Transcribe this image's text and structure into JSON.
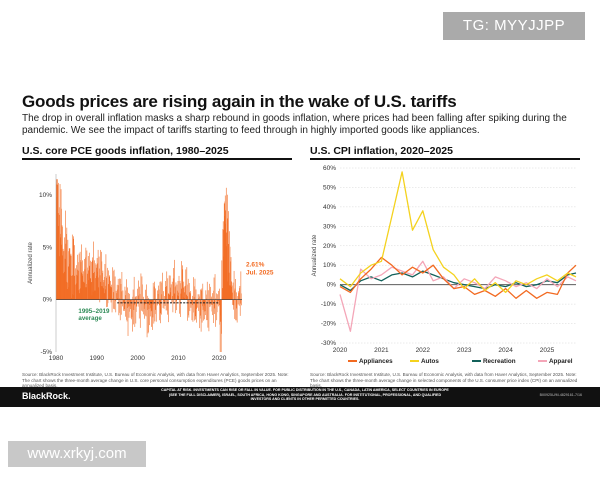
{
  "watermark_top": "TG: MYYJJPP",
  "watermark_bottom": "www.xrkyj.com",
  "title": "Goods prices are rising again in the wake of U.S. tariffs",
  "subtitle": "The drop in overall inflation masks a sharp rebound in goods inflation, where prices had been falling after spiking during the pandemic. We see the impact of tariffs starting to feed through in highly imported goods like appliances.",
  "footer": {
    "brand": "BlackRock.",
    "disclaimer": "CAPITAL AT RISK. INVESTMENTS CAN RISE OR FALL IN VALUE. FOR PUBLIC DISTRIBUTION IN THE U.S., CANADA, LATIN AMERICA, SELECT COUNTRIES IN EUROPE (SEE THE FULL DISCLAIMER), ISRAEL, SOUTH AFRICA, HONG KONG, SINGAPORE AND AUSTRALIA. FOR INSTITUTIONAL, PROFESSIONAL, AND QUALIFIED INVESTORS AND CLIENTS IN OTHER PERMITTED COUNTRIES.",
    "code": "BII0925U/M-4829161-7/16"
  },
  "colors": {
    "orange": "#f26a21",
    "dark": "#2e2e2e",
    "green": "#2e8b57",
    "axis": "#444444",
    "yellow": "#f4d21e",
    "teal": "#12615a",
    "pink": "#f4a6b8",
    "grid": "#cccccc"
  },
  "chart_data": [
    {
      "type": "bar",
      "title": "U.S. core PCE goods inflation, 1980–2025",
      "ylabel": "Annualized rate",
      "xlim": [
        1980,
        2025.6
      ],
      "ylim": [
        -5,
        12
      ],
      "yticks": [
        -5,
        0,
        5,
        10
      ],
      "ytick_labels": [
        "-5%",
        "0%",
        "5%",
        "10%"
      ],
      "xticks": [
        1980,
        1990,
        2000,
        2010,
        2020
      ],
      "average": {
        "value": -0.3,
        "label_1": "1995–2019",
        "label_2": "average"
      },
      "latest": {
        "value": 2.61,
        "label_1": "2.61%",
        "label_2": "Jul. 2025"
      },
      "anchors": [
        [
          1980,
          11.0
        ],
        [
          1980.5,
          9.0
        ],
        [
          1981,
          8.0
        ],
        [
          1981.5,
          6.0
        ],
        [
          1982,
          4.0
        ],
        [
          1982.5,
          5.0
        ],
        [
          1983,
          3.0
        ],
        [
          1983.5,
          4.0
        ],
        [
          1984,
          3.0
        ],
        [
          1985,
          2.5
        ],
        [
          1986,
          3.0
        ],
        [
          1987,
          2.5
        ],
        [
          1988,
          3.0
        ],
        [
          1989,
          2.5
        ],
        [
          1990,
          3.0
        ],
        [
          1991,
          2.5
        ],
        [
          1992,
          1.8
        ],
        [
          1993,
          1.2
        ],
        [
          1994,
          0.8
        ],
        [
          1995,
          0.5
        ],
        [
          1996,
          0.3
        ],
        [
          1997,
          -0.3
        ],
        [
          1998,
          -1.0
        ],
        [
          1999,
          -0.8
        ],
        [
          2000,
          0.0
        ],
        [
          2001,
          0.2
        ],
        [
          2002,
          -1.0
        ],
        [
          2003,
          -1.5
        ],
        [
          2004,
          -0.5
        ],
        [
          2005,
          0.0
        ],
        [
          2006,
          0.2
        ],
        [
          2007,
          0.3
        ],
        [
          2008,
          0.8
        ],
        [
          2009,
          1.0
        ],
        [
          2010,
          0.5
        ],
        [
          2011,
          1.5
        ],
        [
          2012,
          0.8
        ],
        [
          2013,
          -0.5
        ],
        [
          2014,
          -0.2
        ],
        [
          2015,
          -0.6
        ],
        [
          2016,
          -0.8
        ],
        [
          2017,
          -0.6
        ],
        [
          2018,
          -0.2
        ],
        [
          2019,
          -0.2
        ],
        [
          2020,
          -0.5
        ],
        [
          2020.4,
          -4.2
        ],
        [
          2020.8,
          3.5
        ],
        [
          2021.3,
          10.5
        ],
        [
          2021.7,
          7.0
        ],
        [
          2022.2,
          6.0
        ],
        [
          2022.7,
          2.5
        ],
        [
          2023.2,
          1.0
        ],
        [
          2023.7,
          0.0
        ],
        [
          2024.2,
          -0.5
        ],
        [
          2024.7,
          -0.2
        ],
        [
          2025.2,
          0.8
        ],
        [
          2025.6,
          2.61
        ]
      ],
      "note": "Source: BlackRock Investment Institute, U.S. Bureau of Economic Analysis, with data from Haver Analytics, September 2025. Note: The chart shows the three-month average change in U.S. core personal consumption expenditures (PCE) goods prices on an annualized basis."
    },
    {
      "type": "line",
      "title": "U.S. CPI inflation, 2020–2025",
      "ylabel": "Annualized rate",
      "xlim": [
        2020,
        2025.7
      ],
      "ylim": [
        -30,
        60
      ],
      "yticks": [
        -30,
        -20,
        -10,
        0,
        10,
        20,
        30,
        40,
        50,
        60
      ],
      "ytick_labels": [
        "-30%",
        "-20%",
        "-10%",
        "0%",
        "10%",
        "20%",
        "30%",
        "40%",
        "50%",
        "60%"
      ],
      "xticks": [
        2020,
        2021,
        2022,
        2023,
        2024,
        2025
      ],
      "series": [
        {
          "name": "Appliances",
          "color_key": "orange",
          "x": [
            2020,
            2020.25,
            2020.5,
            2020.75,
            2021,
            2021.25,
            2021.5,
            2021.75,
            2022,
            2022.25,
            2022.5,
            2022.75,
            2023,
            2023.25,
            2023.5,
            2023.75,
            2024,
            2024.25,
            2024.5,
            2024.75,
            2025,
            2025.25,
            2025.5,
            2025.7
          ],
          "values": [
            -1,
            -4,
            3,
            8,
            14,
            10,
            5,
            9,
            6,
            10,
            3,
            -2,
            -1,
            -5,
            -3,
            -6,
            -2,
            -7,
            -3,
            -7,
            -4,
            -5,
            6,
            10
          ]
        },
        {
          "name": "Autos",
          "color_key": "yellow",
          "x": [
            2020,
            2020.25,
            2020.5,
            2020.75,
            2021,
            2021.25,
            2021.5,
            2021.75,
            2022,
            2022.25,
            2022.5,
            2022.75,
            2023,
            2023.25,
            2023.5,
            2023.75,
            2024,
            2024.25,
            2024.5,
            2024.75,
            2025,
            2025.25,
            2025.5,
            2025.7
          ],
          "values": [
            3,
            -1,
            6,
            10,
            12,
            35,
            58,
            28,
            38,
            18,
            9,
            5,
            -2,
            3,
            -3,
            1,
            -4,
            2,
            0,
            3,
            5,
            2,
            6,
            4
          ]
        },
        {
          "name": "Recreation",
          "color_key": "teal",
          "x": [
            2020,
            2020.25,
            2020.5,
            2020.75,
            2021,
            2021.25,
            2021.5,
            2021.75,
            2022,
            2022.25,
            2022.5,
            2022.75,
            2023,
            2023.25,
            2023.5,
            2023.75,
            2024,
            2024.25,
            2024.5,
            2024.75,
            2025,
            2025.25,
            2025.5,
            2025.7
          ],
          "values": [
            0,
            -3,
            2,
            4,
            2,
            5,
            6,
            4,
            7,
            5,
            3,
            1,
            0,
            -1,
            -2,
            0,
            -1,
            1,
            -1,
            0,
            2,
            1,
            5,
            6
          ]
        },
        {
          "name": "Apparel",
          "color_key": "pink",
          "x": [
            2020,
            2020.25,
            2020.5,
            2020.75,
            2021,
            2021.25,
            2021.5,
            2021.75,
            2022,
            2022.25,
            2022.5,
            2022.75,
            2023,
            2023.25,
            2023.5,
            2023.75,
            2024,
            2024.25,
            2024.5,
            2024.75,
            2025,
            2025.25,
            2025.5,
            2025.7
          ],
          "values": [
            -5,
            -24,
            8,
            3,
            5,
            9,
            7,
            5,
            12,
            2,
            4,
            -2,
            3,
            1,
            -2,
            4,
            2,
            -1,
            1,
            -2,
            3,
            -1,
            4,
            2
          ]
        }
      ],
      "note": "Source: BlackRock Investment Institute, U.S. Bureau of Economic Analysis, with data from Haver Analytics, September 2025. Note: The chart shows the three-month average change in selected components of the U.S. consumer price index (CPI) on an annualized basis."
    }
  ]
}
